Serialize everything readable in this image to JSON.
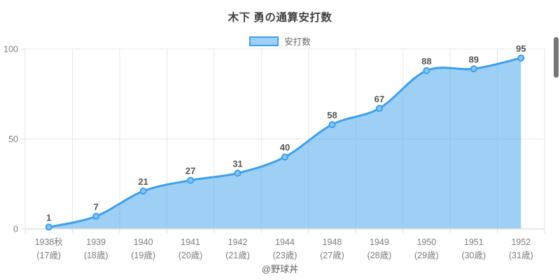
{
  "chart_data": {
    "type": "area",
    "title": "木下 勇の通算安打数",
    "series": [
      {
        "name": "安打数",
        "values": [
          1,
          7,
          21,
          27,
          31,
          40,
          58,
          67,
          88,
          89,
          95
        ]
      }
    ],
    "categories": [
      "1938秋",
      "1939",
      "1940",
      "1941",
      "1942",
      "1944",
      "1948",
      "1949",
      "1950",
      "1951",
      "1952"
    ],
    "age_labels": [
      "(17歳)",
      "(18歳)",
      "(19歳)",
      "(20歳)",
      "(21歳)",
      "(23歳)",
      "(27歳)",
      "(28歳)",
      "(29歳)",
      "(30歳)",
      "(31歳)"
    ],
    "xlabel": "",
    "ylabel": "",
    "ylim": [
      0,
      100
    ],
    "y_ticks": [
      0,
      50,
      100
    ],
    "grid": true,
    "legend_position": "top",
    "point_labels_visible": true
  },
  "legend": {
    "label": "安打数"
  },
  "footer": {
    "credit": "@野球丼"
  },
  "colors": {
    "line": "#3da0ec",
    "area_fill": "rgba(61,160,236,0.5)",
    "point_fill": "#8ac5f2",
    "legend_swatch_fill": "#9dd0f4",
    "legend_swatch_border": "#3da0ec",
    "grid": "#e7e7e7",
    "axis": "#dedede",
    "tick_text": "#7e7e7e",
    "data_label": "#565656",
    "title_text": "#424242",
    "legend_text": "#666666",
    "footer_text": "#5e5e5e",
    "scrollbar": "#757575"
  }
}
